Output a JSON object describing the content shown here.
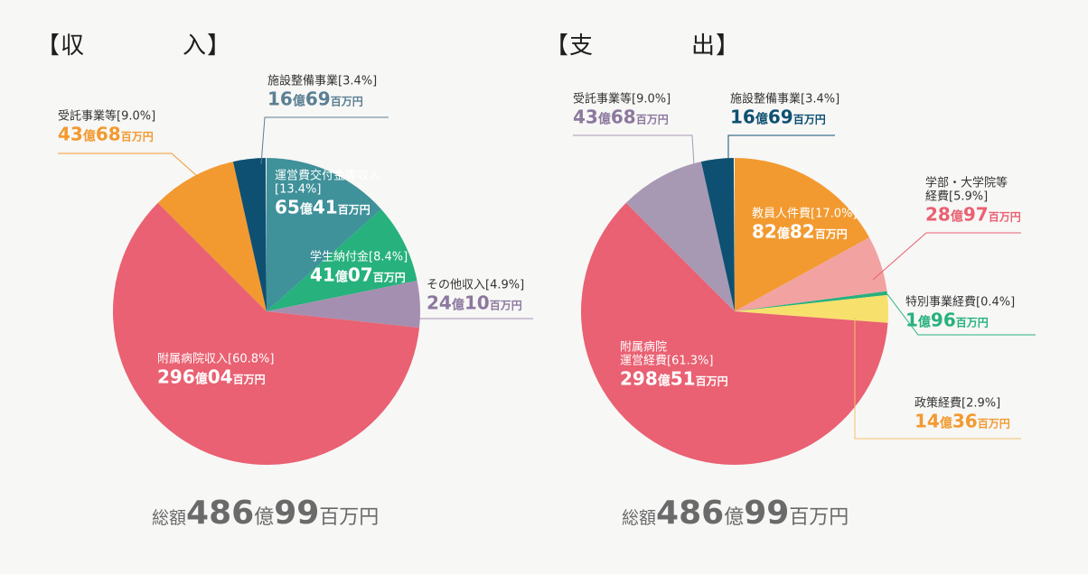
{
  "income": {
    "heading": "【収　　　　入】",
    "total_label": "総額",
    "total_big1": "486",
    "total_unit1": "億",
    "total_big2": "99",
    "total_unit2": "百万円"
  },
  "expense": {
    "heading": "【支　　　　出】",
    "total_label": "総額",
    "total_big1": "486",
    "total_unit1": "億",
    "total_big2": "99",
    "total_unit2": "百万円"
  },
  "chart_data": [
    {
      "type": "pie",
      "title": "【収　　　　入】",
      "total": "総額486億99百万円",
      "slices": [
        {
          "label": "運営費交付金等収入",
          "pct": "[13.4%]",
          "percent": 13.4,
          "amount_a": "65",
          "amount_b": "41",
          "color": "#3f919a"
        },
        {
          "label": "学生納付金",
          "pct": "[8.4%]",
          "percent": 8.4,
          "amount_a": "41",
          "amount_b": "07",
          "color": "#27b17d"
        },
        {
          "label": "その他収入",
          "pct": "[4.9%]",
          "percent": 4.9,
          "amount_a": "24",
          "amount_b": "10",
          "color": "#a58fb0"
        },
        {
          "label": "附属病院収入",
          "pct": "[60.8%]",
          "percent": 60.8,
          "amount_a": "296",
          "amount_b": "04",
          "color": "#e96172"
        },
        {
          "label": "受託事業等",
          "pct": "[9.0%]",
          "percent": 9.0,
          "amount_a": "43",
          "amount_b": "68",
          "color": "#f29a30"
        },
        {
          "label": "施設整備事業",
          "pct": "[3.4%]",
          "percent": 3.4,
          "amount_a": "16",
          "amount_b": "69",
          "color": "#0e5071"
        }
      ]
    },
    {
      "type": "pie",
      "title": "【支　　　　出】",
      "total": "総額486億99百万円",
      "slices": [
        {
          "label": "教員人件費",
          "pct": "[17.0%]",
          "percent": 17.0,
          "amount_a": "82",
          "amount_b": "82",
          "color": "#f29a30"
        },
        {
          "label": "学部・大学院等",
          "label2": "経費",
          "pct": "[5.9%]",
          "percent": 5.9,
          "amount_a": "28",
          "amount_b": "97",
          "color": "#f3a2a2"
        },
        {
          "label": "特別事業経費",
          "pct": "[0.4%]",
          "percent": 0.4,
          "amount_a": "1",
          "amount_b": "96",
          "color": "#27b17d"
        },
        {
          "label": "政策経費",
          "pct": "[2.9%]",
          "percent": 2.9,
          "amount_a": "14",
          "amount_b": "36",
          "color": "#f8e06c"
        },
        {
          "label": "附属病院",
          "label2": "運営経費",
          "pct": "[61.3%]",
          "percent": 61.3,
          "amount_a": "298",
          "amount_b": "51",
          "color": "#e96172"
        },
        {
          "label": "受託事業等",
          "pct": "[9.0%]",
          "percent": 9.0,
          "amount_a": "43",
          "amount_b": "68",
          "color": "#a799b4"
        },
        {
          "label": "施設整備事業",
          "pct": "[3.4%]",
          "percent": 3.4,
          "amount_a": "16",
          "amount_b": "69",
          "color": "#0e5071"
        }
      ]
    }
  ],
  "units": {
    "oku": "億",
    "hyakuman": "百万円"
  }
}
